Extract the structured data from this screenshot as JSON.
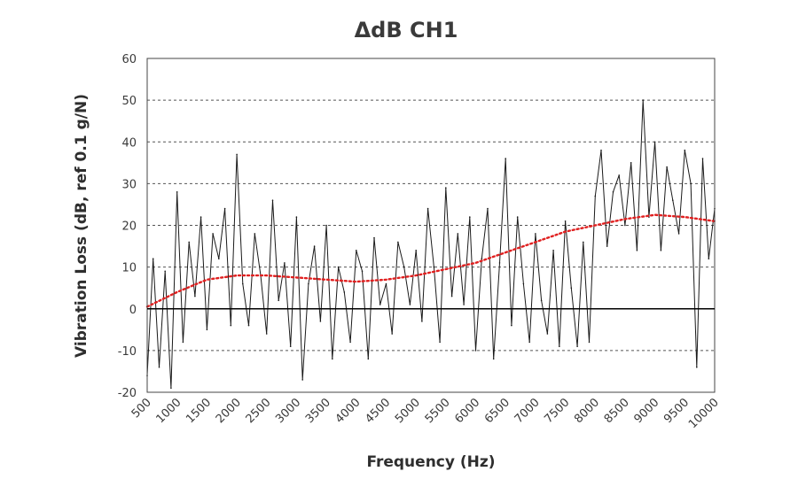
{
  "colors": {
    "noisy_series": "#1a1a1a",
    "trend_series": "#e02020",
    "gridline": "#555555",
    "zero_line": "#000000",
    "frame": "#444444"
  },
  "chart_data": {
    "type": "line",
    "title": "ΔdB CH1",
    "xlabel": "Frequency (Hz)",
    "ylabel": "Vibration Loss (dB, ref 0.1 g/N)",
    "xlim": [
      500,
      10000
    ],
    "ylim": [
      -20,
      60
    ],
    "x_ticks": [
      "500",
      "1000",
      "1500",
      "2000",
      "2500",
      "3000",
      "3500",
      "4000",
      "4500",
      "5000",
      "5500",
      "6000",
      "6500",
      "7000",
      "7500",
      "8000",
      "8500",
      "9000",
      "9500",
      "10000"
    ],
    "y_ticks": [
      "60",
      "50",
      "40",
      "30",
      "20",
      "10",
      "0",
      "-10",
      "-20"
    ],
    "grid": "horizontal dashed",
    "legend": "none",
    "series": [
      {
        "style": "solid thin black, noisy",
        "x": [
          500,
          600,
          700,
          800,
          900,
          1000,
          1100,
          1200,
          1300,
          1400,
          1500,
          1600,
          1700,
          1800,
          1900,
          2000,
          2100,
          2200,
          2300,
          2400,
          2500,
          2600,
          2700,
          2800,
          2900,
          3000,
          3100,
          3200,
          3300,
          3400,
          3500,
          3600,
          3700,
          3800,
          3900,
          4000,
          4100,
          4200,
          4300,
          4400,
          4500,
          4600,
          4700,
          4800,
          4900,
          5000,
          5100,
          5200,
          5300,
          5400,
          5500,
          5600,
          5700,
          5800,
          5900,
          6000,
          6100,
          6200,
          6300,
          6400,
          6500,
          6600,
          6700,
          6800,
          6900,
          7000,
          7100,
          7200,
          7300,
          7400,
          7500,
          7600,
          7700,
          7800,
          7900,
          8000,
          8100,
          8200,
          8300,
          8400,
          8500,
          8600,
          8700,
          8800,
          8900,
          9000,
          9100,
          9200,
          9300,
          9400,
          9500,
          9600,
          9700,
          9800,
          9900,
          10000
        ],
        "y": [
          -16,
          12,
          -14,
          9,
          -19,
          28,
          -8,
          16,
          3,
          22,
          -5,
          18,
          12,
          24,
          -4,
          37,
          6,
          -4,
          18,
          8,
          -6,
          26,
          2,
          11,
          -9,
          22,
          -17,
          6,
          15,
          -3,
          20,
          -12,
          10,
          4,
          -8,
          14,
          9,
          -12,
          17,
          1,
          6,
          -6,
          16,
          10,
          1,
          14,
          -3,
          24,
          10,
          -8,
          29,
          3,
          18,
          1,
          22,
          -10,
          12,
          24,
          -12,
          11,
          36,
          -4,
          22,
          6,
          -8,
          18,
          2,
          -6,
          14,
          -9,
          21,
          5,
          -9,
          16,
          -8,
          27,
          38,
          15,
          28,
          32,
          20,
          35,
          14,
          50,
          22,
          40,
          14,
          34,
          26,
          18,
          38,
          30,
          -14,
          36,
          12,
          24
        ]
      },
      {
        "style": "dotted red trend",
        "x": [
          500,
          1000,
          1500,
          2000,
          2500,
          3000,
          3500,
          4000,
          4500,
          5000,
          5500,
          6000,
          6500,
          7000,
          7500,
          8000,
          8500,
          9000,
          9500,
          10000
        ],
        "y": [
          0.5,
          4,
          7,
          8,
          8,
          7.5,
          7,
          6.5,
          7,
          8,
          9.5,
          11,
          13.5,
          16,
          18.5,
          20,
          21.5,
          22.5,
          22,
          21
        ]
      }
    ]
  }
}
